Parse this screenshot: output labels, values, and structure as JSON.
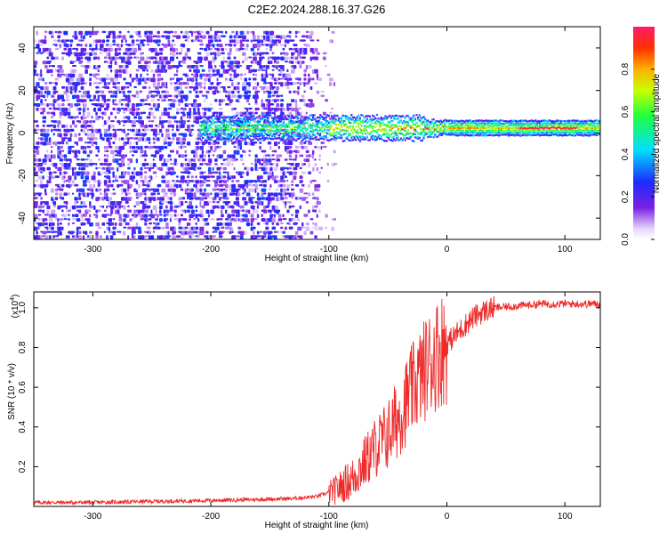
{
  "figure": {
    "title": "C2E2.2024.288.16.37.G26"
  },
  "chart_data": [
    {
      "type": "heatmap",
      "xlabel": "Height of straight line (km)",
      "ylabel": "Frequency (Hz)",
      "xlim": [
        -350,
        130
      ],
      "ylim": [
        -50,
        50
      ],
      "xticks": [
        -300,
        -200,
        -100,
        0,
        100
      ],
      "yticks": [
        -40,
        -20,
        0,
        20,
        40
      ],
      "colorbar": {
        "label": "Normalized spectral amplitude",
        "range": [
          0,
          1
        ],
        "ticks": [
          0.0,
          0.2,
          0.4,
          0.6,
          0.8
        ],
        "colormap": [
          "#ffffff",
          "#e6d6fb",
          "#7a1fe6",
          "#1c2cff",
          "#00e0ff",
          "#20ff40",
          "#c8ff00",
          "#ffb000",
          "#ff3000",
          "#ff1a6a"
        ]
      },
      "features": {
        "noise_region_x": [
          -350,
          -100
        ],
        "signal_band_center_hz": 2,
        "signal_band_start_km": -210
      },
      "grid": false
    },
    {
      "type": "line",
      "xlabel": "Height of straight line (km)",
      "ylabel": "SNR (10 * v/v)",
      "yscale_note": "(x10",
      "yscale_exp": "4",
      "xlim": [
        -350,
        130
      ],
      "ylim": [
        0,
        1.08
      ],
      "xticks": [
        -300,
        -200,
        -100,
        0,
        100
      ],
      "yticks": [
        0.2,
        0.4,
        0.6,
        0.8,
        1.0
      ],
      "color": "#ee2b2b",
      "series": [
        {
          "x": [
            -350,
            -300,
            -250,
            -200,
            -160,
            -130,
            -110,
            -95,
            -80,
            -70,
            -60,
            -50,
            -40,
            -30,
            -20,
            -10,
            0,
            10,
            20,
            30,
            40,
            60,
            80,
            100,
            130
          ],
          "y": [
            0.02,
            0.02,
            0.025,
            0.03,
            0.035,
            0.04,
            0.05,
            0.08,
            0.14,
            0.22,
            0.3,
            0.36,
            0.46,
            0.58,
            0.68,
            0.76,
            0.82,
            0.88,
            0.94,
            0.98,
            1.0,
            1.01,
            1.02,
            1.02,
            1.02
          ]
        }
      ],
      "grid": false
    }
  ]
}
